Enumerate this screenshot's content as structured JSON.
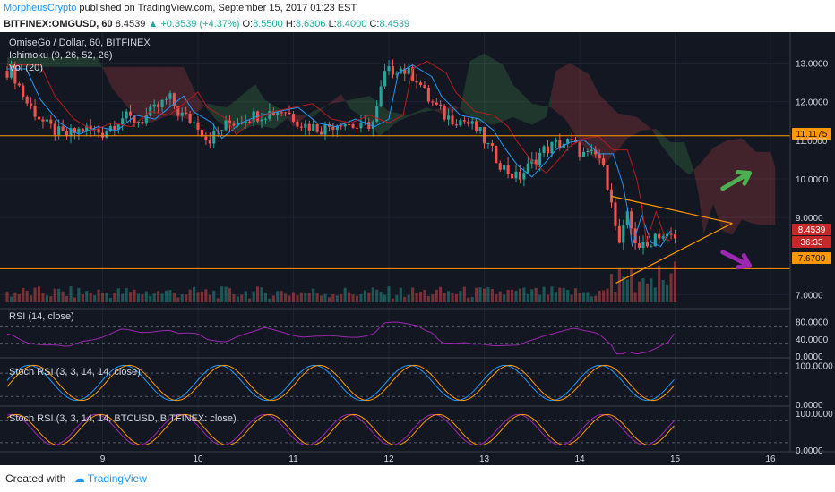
{
  "header": {
    "author": "MorpheusCrypto",
    "published_text": "published on TradingView.com, September 15, 2017 01:23 EST",
    "symbol": "BITFINEX:OMGUSD, 60",
    "last": "8.4539",
    "change": "+0.3539 (+4.37%)",
    "open_label": "O:",
    "open": "8.5500",
    "high_label": "H:",
    "high": "8.6306",
    "low_label": "L:",
    "low": "8.4000",
    "close_label": "C:",
    "close": "8.4539"
  },
  "legend": {
    "title": "OmiseGo / Dollar, 60, BITFINEX",
    "ichimoku": "Ichimoku (9, 26, 52, 26)",
    "vol": "Vol (20)"
  },
  "price_badges": {
    "line_upper": "11.1175",
    "current": "8.4539",
    "countdown": "36:33",
    "line_lower": "7.6709"
  },
  "panes": {
    "rsi": "RSI (14, close)",
    "stoch1": "Stoch RSI (3, 3, 14, 14, close)",
    "stoch2": "Stoch RSI (3, 3, 14, 14, BTCUSD, BITFINEX: close)"
  },
  "footer": {
    "created_with": "Created with",
    "brand": "TradingView"
  },
  "colors": {
    "background": "#131722",
    "up": "#26a69a",
    "down": "#ef5350",
    "orange": "#ff9800",
    "green_arrow": "#4caf50",
    "purple_arrow": "#9c27b0"
  },
  "chart_data": {
    "type": "candlestick",
    "x_ticks": [
      "9",
      "10",
      "11",
      "12",
      "13",
      "14",
      "15",
      "16"
    ],
    "price_ticks": [
      "13.0000",
      "12.0000",
      "11.0000",
      "10.0000",
      "9.0000",
      "7.0000"
    ],
    "rsi_ticks": [
      "80.0000",
      "40.0000",
      "0.0000"
    ],
    "stoch1_ticks": [
      "100.0000",
      "0.0000"
    ],
    "stoch2_ticks": [
      "100.0000",
      "0.0000"
    ],
    "price_range": [
      6.8,
      13.8
    ],
    "horizontal_lines": [
      11.1175,
      7.6709
    ],
    "triangle": {
      "upper_start": [
        14.33,
        9.55
      ],
      "apex": [
        15.6,
        8.85
      ],
      "lower_start": [
        14.38,
        7.3
      ]
    },
    "close_path": [
      [
        8.05,
        12.8
      ],
      [
        8.2,
        12.0
      ],
      [
        8.4,
        11.4
      ],
      [
        8.6,
        11.1
      ],
      [
        8.8,
        11.3
      ],
      [
        9.0,
        11.2
      ],
      [
        9.2,
        11.6
      ],
      [
        9.4,
        11.5
      ],
      [
        9.7,
        12.1
      ],
      [
        9.8,
        11.7
      ],
      [
        10.0,
        11.4
      ],
      [
        10.1,
        11.0
      ],
      [
        10.3,
        11.4
      ],
      [
        10.5,
        11.6
      ],
      [
        10.7,
        11.7
      ],
      [
        10.9,
        11.8
      ],
      [
        11.1,
        11.4
      ],
      [
        11.3,
        11.3
      ],
      [
        11.5,
        11.5
      ],
      [
        11.7,
        11.3
      ],
      [
        11.85,
        11.5
      ],
      [
        11.95,
        12.7
      ],
      [
        12.1,
        12.9
      ],
      [
        12.3,
        12.6
      ],
      [
        12.4,
        12.1
      ],
      [
        12.6,
        11.6
      ],
      [
        12.8,
        11.5
      ],
      [
        12.95,
        11.2
      ],
      [
        13.05,
        10.8
      ],
      [
        13.2,
        10.3
      ],
      [
        13.35,
        10.0
      ],
      [
        13.5,
        10.4
      ],
      [
        13.6,
        10.7
      ],
      [
        13.75,
        10.9
      ],
      [
        13.9,
        10.95
      ],
      [
        14.05,
        10.6
      ],
      [
        14.2,
        10.6
      ],
      [
        14.33,
        9.6
      ],
      [
        14.4,
        8.2
      ],
      [
        14.5,
        9.0
      ],
      [
        14.6,
        8.3
      ],
      [
        14.7,
        8.2
      ],
      [
        14.8,
        8.6
      ],
      [
        14.9,
        8.5
      ],
      [
        15.0,
        8.4539
      ]
    ],
    "arrows": [
      {
        "color_key": "green_arrow",
        "from": [
          15.5,
          9.75
        ],
        "to": [
          15.78,
          10.15
        ]
      },
      {
        "color_key": "purple_arrow",
        "from": [
          15.5,
          8.1
        ],
        "to": [
          15.78,
          7.75
        ]
      }
    ]
  }
}
